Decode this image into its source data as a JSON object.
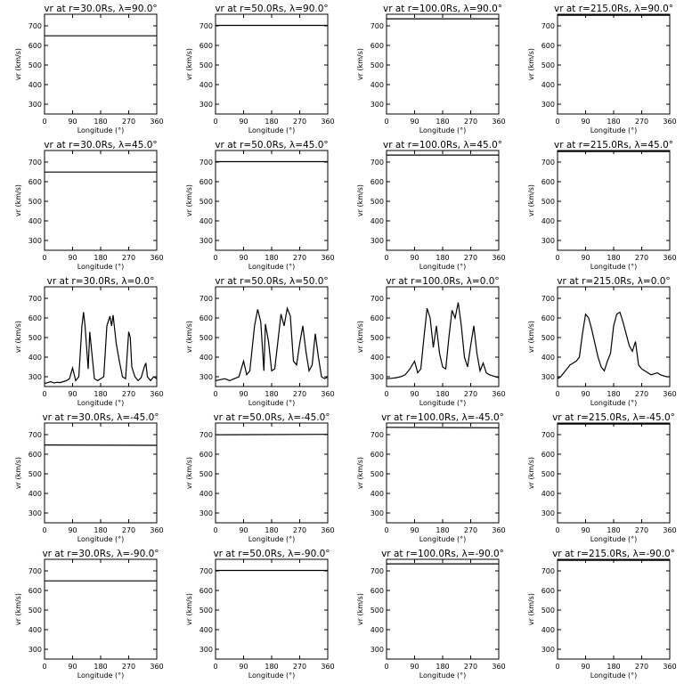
{
  "chart_data": {
    "type": "line",
    "grid": false,
    "shared": {
      "xlabel": "Longitude (°)",
      "ylabel": "vr (km/s)",
      "xticks": [
        0,
        90,
        180,
        270,
        360
      ],
      "yticks": [
        300,
        400,
        500,
        600,
        700
      ],
      "xlim": [
        0,
        360
      ],
      "ylim": [
        250,
        760
      ]
    },
    "panels": [
      {
        "title": "vr at r=30.0Rs, λ=90.0°",
        "x": [
          0,
          360
        ],
        "y": [
          650,
          650
        ]
      },
      {
        "title": "vr at r=50.0Rs, λ=90.0°",
        "x": [
          0,
          360
        ],
        "y": [
          703,
          703
        ]
      },
      {
        "title": "vr at r=100.0Rs, λ=90.0°",
        "x": [
          0,
          360
        ],
        "y": [
          737,
          737
        ]
      },
      {
        "title": "vr at r=215.0Rs, λ=90.0°",
        "x": [
          0,
          360
        ],
        "y": [
          755,
          755
        ]
      },
      {
        "title": "vr at r=30.0Rs, λ=45.0°",
        "x": [
          0,
          360
        ],
        "y": [
          650,
          650
        ]
      },
      {
        "title": "vr at r=50.0Rs, λ=45.0°",
        "x": [
          0,
          360
        ],
        "y": [
          703,
          703
        ]
      },
      {
        "title": "vr at r=100.0Rs, λ=45.0°",
        "x": [
          0,
          360
        ],
        "y": [
          737,
          737
        ]
      },
      {
        "title": "vr at r=215.0Rs, λ=45.0°",
        "x": [
          0,
          360
        ],
        "y": [
          755,
          755
        ]
      },
      {
        "title": "vr at r=30.0Rs, λ=0.0°",
        "x": [
          0,
          10,
          20,
          30,
          40,
          50,
          60,
          70,
          80,
          90,
          100,
          110,
          120,
          125,
          130,
          140,
          145,
          150,
          160,
          170,
          180,
          190,
          200,
          210,
          215,
          220,
          230,
          240,
          250,
          260,
          270,
          275,
          280,
          290,
          300,
          310,
          320,
          325,
          330,
          340,
          350,
          360
        ],
        "y": [
          265,
          270,
          275,
          268,
          272,
          270,
          275,
          280,
          290,
          345,
          280,
          300,
          560,
          630,
          560,
          340,
          530,
          450,
          290,
          280,
          290,
          300,
          560,
          610,
          560,
          615,
          470,
          380,
          300,
          290,
          530,
          500,
          350,
          300,
          280,
          295,
          350,
          370,
          300,
          280,
          300,
          290
        ]
      },
      {
        "title": "vr at r=50.0Rs, λ=50.0°",
        "x": [
          0,
          15,
          30,
          45,
          60,
          75,
          90,
          100,
          110,
          125,
          135,
          145,
          155,
          160,
          170,
          180,
          190,
          200,
          210,
          220,
          230,
          240,
          250,
          260,
          270,
          280,
          290,
          300,
          310,
          320,
          330,
          340,
          350,
          360
        ],
        "y": [
          280,
          285,
          290,
          280,
          290,
          300,
          380,
          310,
          330,
          560,
          645,
          580,
          330,
          570,
          480,
          330,
          340,
          480,
          620,
          560,
          650,
          610,
          380,
          360,
          470,
          560,
          430,
          330,
          360,
          520,
          400,
          300,
          290,
          300
        ]
      },
      {
        "title": "vr at r=100.0Rs, λ=0.0°",
        "x": [
          0,
          15,
          30,
          45,
          60,
          75,
          90,
          100,
          110,
          120,
          130,
          140,
          150,
          160,
          170,
          180,
          190,
          200,
          210,
          220,
          230,
          240,
          250,
          260,
          270,
          280,
          290,
          300,
          310,
          320,
          330,
          340,
          350,
          360
        ],
        "y": [
          290,
          292,
          295,
          300,
          310,
          340,
          380,
          320,
          340,
          500,
          650,
          600,
          450,
          560,
          420,
          350,
          340,
          500,
          640,
          600,
          680,
          560,
          400,
          350,
          460,
          560,
          420,
          330,
          370,
          320,
          310,
          305,
          300,
          295
        ]
      },
      {
        "title": "vr at r=215.0Rs, λ=0.0°",
        "x": [
          0,
          10,
          20,
          30,
          40,
          50,
          60,
          70,
          80,
          90,
          100,
          110,
          120,
          130,
          140,
          150,
          160,
          170,
          180,
          190,
          200,
          210,
          220,
          230,
          240,
          250,
          260,
          270,
          280,
          290,
          300,
          310,
          320,
          330,
          340,
          350,
          360
        ],
        "y": [
          290,
          300,
          320,
          340,
          360,
          370,
          380,
          400,
          520,
          620,
          600,
          540,
          470,
          400,
          350,
          330,
          380,
          420,
          560,
          620,
          630,
          580,
          520,
          460,
          430,
          480,
          360,
          340,
          330,
          320,
          310,
          315,
          320,
          310,
          305,
          300,
          300
        ]
      },
      {
        "title": "vr at r=30.0Rs, λ=-45.0°",
        "x": [
          0,
          360
        ],
        "y": [
          648,
          646
        ]
      },
      {
        "title": "vr at r=50.0Rs, λ=-45.0°",
        "x": [
          0,
          360
        ],
        "y": [
          700,
          702
        ]
      },
      {
        "title": "vr at r=100.0Rs, λ=-45.0°",
        "x": [
          0,
          360
        ],
        "y": [
          738,
          736
        ]
      },
      {
        "title": "vr at r=215.0Rs, λ=-45.0°",
        "x": [
          0,
          360
        ],
        "y": [
          755,
          755
        ]
      },
      {
        "title": "vr at r=30.0Rs, λ=-90.0°",
        "x": [
          0,
          360
        ],
        "y": [
          650,
          650
        ]
      },
      {
        "title": "vr at r=50.0Rs, λ=-90.0°",
        "x": [
          0,
          360
        ],
        "y": [
          703,
          703
        ]
      },
      {
        "title": "vr at r=100.0Rs, λ=-90.0°",
        "x": [
          0,
          360
        ],
        "y": [
          737,
          737
        ]
      },
      {
        "title": "vr at r=215.0Rs, λ=-90.0°",
        "x": [
          0,
          360
        ],
        "y": [
          755,
          755
        ]
      }
    ]
  }
}
